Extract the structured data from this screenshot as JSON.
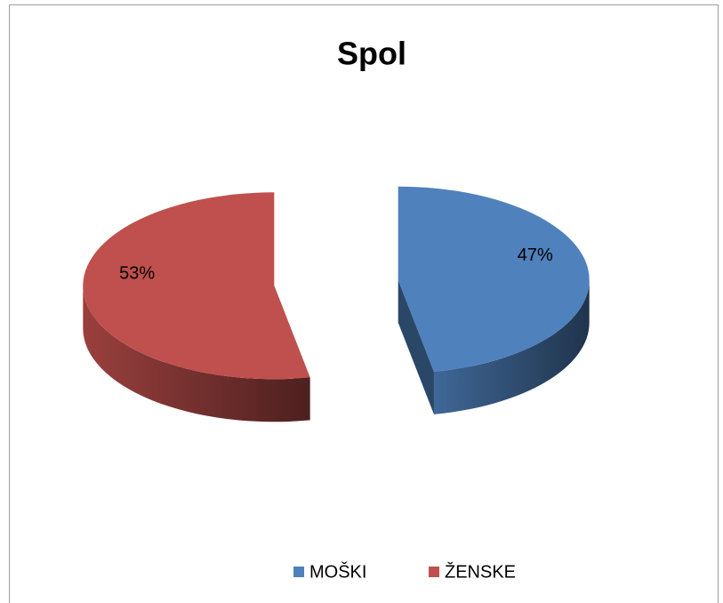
{
  "chart_data": {
    "type": "pie",
    "title": "Spol",
    "categories": [
      "MOŠKI",
      "ŽENSKE"
    ],
    "values": [
      47,
      53
    ],
    "value_labels": [
      "47%",
      "53%"
    ],
    "colors": [
      "#4f81bd",
      "#c0504d"
    ],
    "legend": "bottom"
  }
}
